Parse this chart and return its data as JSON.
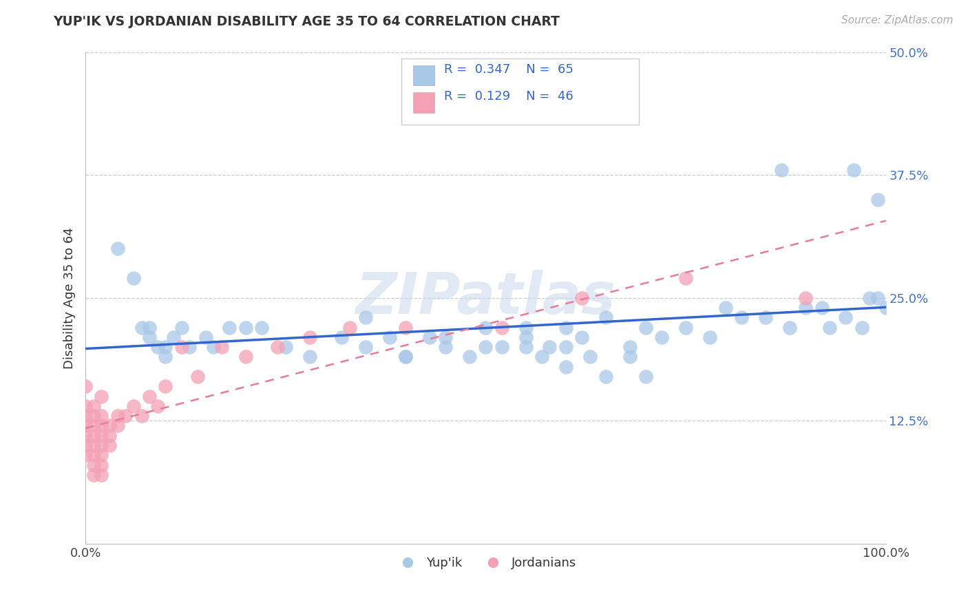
{
  "title": "YUP'IK VS JORDANIAN DISABILITY AGE 35 TO 64 CORRELATION CHART",
  "source": "Source: ZipAtlas.com",
  "ylabel": "Disability Age 35 to 64",
  "xlim": [
    0,
    1.0
  ],
  "ylim": [
    0,
    0.5
  ],
  "ytick_positions": [
    0.125,
    0.25,
    0.375,
    0.5
  ],
  "ytick_labels": [
    "12.5%",
    "25.0%",
    "37.5%",
    "50.0%"
  ],
  "color_yupik": "#a8c8e8",
  "color_jordanian": "#f4a0b5",
  "trendline_yupik_color": "#3366cc",
  "trendline_jordanian_color": "#e87a9a",
  "watermark": "ZIPatlas",
  "yupik_x": [
    0.04,
    0.06,
    0.07,
    0.08,
    0.08,
    0.09,
    0.1,
    0.1,
    0.11,
    0.12,
    0.13,
    0.15,
    0.16,
    0.18,
    0.2,
    0.22,
    0.25,
    0.28,
    0.32,
    0.35,
    0.38,
    0.4,
    0.43,
    0.45,
    0.48,
    0.5,
    0.52,
    0.55,
    0.58,
    0.6,
    0.62,
    0.65,
    0.68,
    0.7,
    0.72,
    0.75,
    0.78,
    0.8,
    0.82,
    0.85,
    0.87,
    0.88,
    0.9,
    0.92,
    0.93,
    0.95,
    0.96,
    0.97,
    0.98,
    0.99,
    0.99,
    1.0,
    0.55,
    0.57,
    0.6,
    0.63,
    0.65,
    0.68,
    0.7,
    0.35,
    0.4,
    0.45,
    0.5,
    0.55,
    0.6
  ],
  "yupik_y": [
    0.3,
    0.27,
    0.22,
    0.21,
    0.22,
    0.2,
    0.2,
    0.19,
    0.21,
    0.22,
    0.2,
    0.21,
    0.2,
    0.22,
    0.22,
    0.22,
    0.2,
    0.19,
    0.21,
    0.2,
    0.21,
    0.19,
    0.21,
    0.2,
    0.19,
    0.22,
    0.2,
    0.22,
    0.2,
    0.22,
    0.21,
    0.23,
    0.2,
    0.22,
    0.21,
    0.22,
    0.21,
    0.24,
    0.23,
    0.23,
    0.38,
    0.22,
    0.24,
    0.24,
    0.22,
    0.23,
    0.38,
    0.22,
    0.25,
    0.25,
    0.35,
    0.24,
    0.2,
    0.19,
    0.18,
    0.19,
    0.17,
    0.19,
    0.17,
    0.23,
    0.19,
    0.21,
    0.2,
    0.21,
    0.2
  ],
  "jordanian_x": [
    0.0,
    0.0,
    0.0,
    0.0,
    0.0,
    0.0,
    0.01,
    0.01,
    0.01,
    0.01,
    0.01,
    0.01,
    0.01,
    0.02,
    0.02,
    0.02,
    0.02,
    0.02,
    0.02,
    0.02,
    0.03,
    0.03,
    0.03,
    0.04,
    0.04,
    0.05,
    0.06,
    0.07,
    0.08,
    0.09,
    0.1,
    0.12,
    0.14,
    0.17,
    0.2,
    0.24,
    0.28,
    0.33,
    0.4,
    0.52,
    0.62,
    0.75,
    0.9,
    0.0,
    0.01,
    0.02
  ],
  "jordanian_y": [
    0.11,
    0.12,
    0.13,
    0.14,
    0.1,
    0.09,
    0.11,
    0.12,
    0.13,
    0.1,
    0.09,
    0.08,
    0.07,
    0.11,
    0.12,
    0.13,
    0.1,
    0.09,
    0.08,
    0.07,
    0.12,
    0.11,
    0.1,
    0.13,
    0.12,
    0.13,
    0.14,
    0.13,
    0.15,
    0.14,
    0.16,
    0.2,
    0.17,
    0.2,
    0.19,
    0.2,
    0.21,
    0.22,
    0.22,
    0.22,
    0.25,
    0.27,
    0.25,
    0.16,
    0.14,
    0.15
  ]
}
